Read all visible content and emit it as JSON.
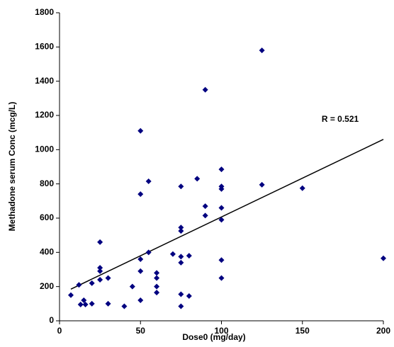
{
  "chart_data": {
    "type": "scatter",
    "x_label": "Dose0 (mg/day)",
    "y_label": "Methadone serum Conc (mcg/L)",
    "annotation": "R = 0.521",
    "color": "#000080",
    "x": [
      7,
      12,
      13,
      15,
      16,
      20,
      20,
      25,
      25,
      25,
      25,
      30,
      30,
      40,
      45,
      50,
      50,
      50,
      50,
      50,
      55,
      55,
      60,
      60,
      60,
      60,
      70,
      75,
      75,
      75,
      75,
      75,
      75,
      75,
      80,
      80,
      85,
      90,
      90,
      90,
      100,
      100,
      100,
      100,
      100,
      100,
      100,
      125,
      125,
      150,
      200
    ],
    "values": [
      150,
      210,
      95,
      120,
      95,
      220,
      100,
      460,
      310,
      290,
      240,
      250,
      100,
      85,
      200,
      1110,
      740,
      360,
      290,
      120,
      815,
      400,
      280,
      250,
      200,
      165,
      390,
      785,
      545,
      525,
      375,
      340,
      155,
      85,
      380,
      145,
      830,
      1350,
      670,
      615,
      885,
      785,
      770,
      660,
      590,
      355,
      250,
      1580,
      795,
      775,
      365
    ],
    "trendline": {
      "x": [
        7,
        200
      ],
      "y": [
        185,
        1060
      ]
    },
    "xlim": [
      0,
      200
    ],
    "xticks": [
      0,
      50,
      100,
      150,
      200
    ],
    "ylim": [
      0,
      1800
    ],
    "yticks": [
      0,
      200,
      400,
      600,
      800,
      1000,
      1200,
      1400,
      1600,
      1800
    ],
    "grid": false
  }
}
